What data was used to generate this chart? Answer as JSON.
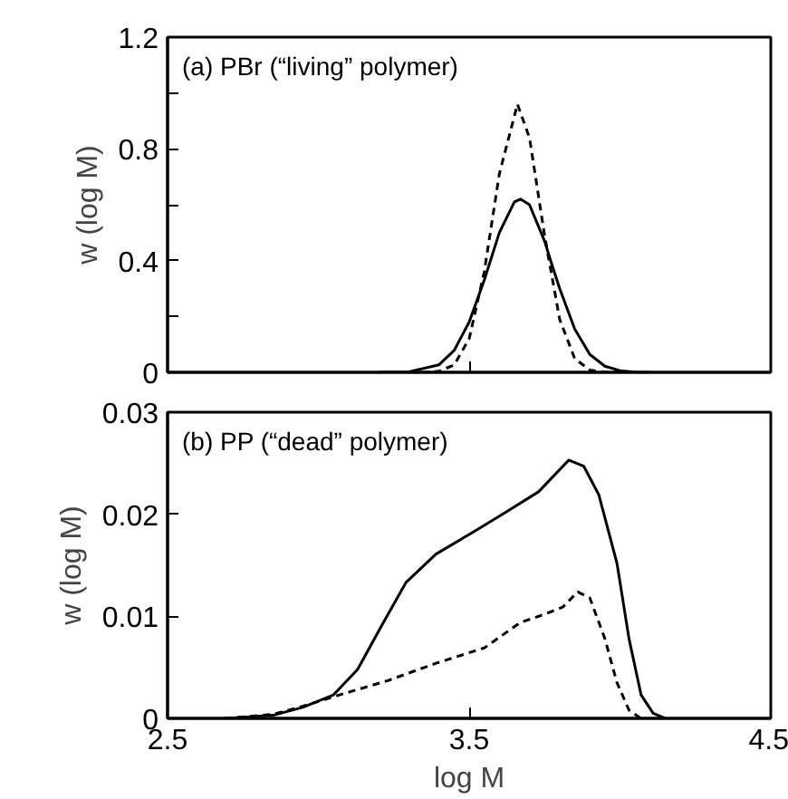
{
  "chart_data": [
    {
      "type": "line",
      "annotations": [
        "(a) PBr (“living” polymer)"
      ],
      "ylabel": "w (log M)",
      "xlim": [
        2.5,
        4.5
      ],
      "xticks": [
        {
          "value": 3.5,
          "label": null
        }
      ],
      "ylim": [
        0,
        1.2
      ],
      "yticks": [
        0,
        {
          "value": 0.2,
          "label": null
        },
        0.4,
        {
          "value": 0.6,
          "label": null
        },
        0.8,
        {
          "value": 1.0,
          "label": null
        },
        1.2
      ],
      "tick_labels": "y",
      "grid": false,
      "series": [
        {
          "color": "#000000",
          "line_style": "solid",
          "x": [
            3.2,
            3.3,
            3.4,
            3.45,
            3.5,
            3.55,
            3.6,
            3.65,
            3.67,
            3.7,
            3.75,
            3.77,
            3.8,
            3.85,
            3.9,
            3.95,
            4.0,
            4.05,
            4.1
          ],
          "values": [
            0,
            0.002,
            0.027,
            0.078,
            0.18,
            0.33,
            0.5,
            0.61,
            0.62,
            0.6,
            0.47,
            0.4,
            0.3,
            0.155,
            0.064,
            0.022,
            0.006,
            0.001,
            0
          ]
        },
        {
          "color": "#000000",
          "line_style": "dashed",
          "x": [
            3.3,
            3.35,
            3.4,
            3.45,
            3.5,
            3.55,
            3.6,
            3.66,
            3.7,
            3.75,
            3.8,
            3.85,
            3.9,
            3.95,
            4.0
          ],
          "values": [
            0,
            0,
            0.004,
            0.026,
            0.12,
            0.36,
            0.71,
            0.96,
            0.84,
            0.49,
            0.19,
            0.049,
            0.008,
            0.001,
            0
          ]
        }
      ]
    },
    {
      "type": "line",
      "annotations": [
        "(b) PP (“dead” polymer)"
      ],
      "xlabel": "log M",
      "ylabel": "w (log M)",
      "xlim": [
        2.5,
        4.5
      ],
      "xticks": [
        2.5,
        3.5,
        4.5
      ],
      "ylim": [
        0,
        0.03
      ],
      "yticks": [
        0,
        0.01,
        0.02,
        0.03
      ],
      "grid": false,
      "series": [
        {
          "color": "#000000",
          "line_style": "solid",
          "x": [
            2.69,
            2.85,
            2.95,
            3.05,
            3.13,
            3.21,
            3.29,
            3.39,
            3.51,
            3.61,
            3.73,
            3.83,
            3.88,
            3.93,
            3.99,
            4.03,
            4.07,
            4.11,
            4.15
          ],
          "values": [
            0,
            0.0003,
            0.0011,
            0.0023,
            0.0048,
            0.0091,
            0.0133,
            0.0161,
            0.0182,
            0.02,
            0.0222,
            0.0253,
            0.0247,
            0.0219,
            0.0152,
            0.0078,
            0.0023,
            0.0005,
            0
          ]
        },
        {
          "color": "#000000",
          "line_style": "dashed",
          "x": [
            2.69,
            2.85,
            2.95,
            3.07,
            3.23,
            3.39,
            3.55,
            3.67,
            3.75,
            3.81,
            3.86,
            3.9,
            3.95,
            3.99,
            4.03,
            4.07
          ],
          "values": [
            0,
            0.0004,
            0.0012,
            0.0023,
            0.0037,
            0.0054,
            0.0069,
            0.0094,
            0.0102,
            0.0109,
            0.0124,
            0.0118,
            0.0078,
            0.0035,
            0.0008,
            0
          ]
        }
      ]
    }
  ]
}
